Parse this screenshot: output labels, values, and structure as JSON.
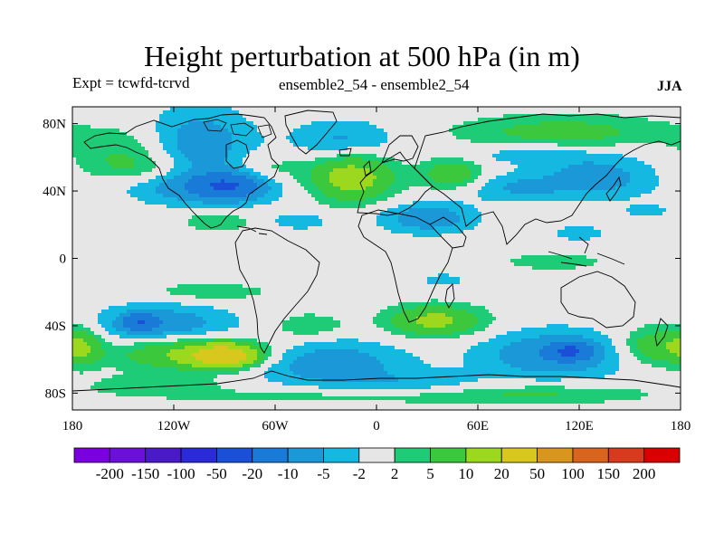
{
  "header": {
    "title": "Height perturbation at 500 hPa (in m)",
    "left_subtitle": "Expt = tcwfd-tcrvd",
    "center_subtitle": "ensemble2_54 - ensemble2_54",
    "right_subtitle": "JJA"
  },
  "chart_data": {
    "type": "heatmap",
    "title": "Height perturbation at 500 hPa (in m)",
    "xlim": [
      -180,
      180
    ],
    "ylim": [
      -90,
      90
    ],
    "x_ticks": [
      {
        "value": -180,
        "label": "180"
      },
      {
        "value": -120,
        "label": "120W"
      },
      {
        "value": -60,
        "label": "60W"
      },
      {
        "value": 0,
        "label": "0"
      },
      {
        "value": 60,
        "label": "60E"
      },
      {
        "value": 120,
        "label": "120E"
      },
      {
        "value": 180,
        "label": "180"
      }
    ],
    "y_ticks": [
      {
        "value": 80,
        "label": "80N"
      },
      {
        "value": 40,
        "label": "40N"
      },
      {
        "value": 0,
        "label": "0"
      },
      {
        "value": -40,
        "label": "40S"
      },
      {
        "value": -80,
        "label": "80S"
      }
    ],
    "levels": [
      -200,
      -150,
      -100,
      -50,
      -20,
      -10,
      -5,
      -2,
      2,
      5,
      10,
      20,
      50,
      100,
      150,
      200
    ],
    "colorbar_labels": [
      "-200",
      "-150",
      "-100",
      "-50",
      "-20",
      "-10",
      "-5",
      "-2",
      "2",
      "5",
      "10",
      "20",
      "50",
      "100",
      "150",
      "200"
    ],
    "colors": [
      "#7a00e0",
      "#6a10d8",
      "#4a1ac8",
      "#2a2ad8",
      "#1a50d8",
      "#1a7ad8",
      "#1a98d8",
      "#14b8e0",
      "#e6e6e6",
      "#1ecc78",
      "#3cc83c",
      "#9cd81e",
      "#d8c81e",
      "#d8961e",
      "#d8641e",
      "#d83a1e",
      "#d80000"
    ],
    "anomalies": [
      {
        "lon": -105,
        "lat": 67,
        "rlon": 30,
        "rlat": 22,
        "value": -8
      },
      {
        "lon": -150,
        "lat": 62,
        "rlon": 30,
        "rlat": 15,
        "value": 5
      },
      {
        "lon": -100,
        "lat": 43,
        "rlon": 45,
        "rlat": 11,
        "value": -8
      },
      {
        "lon": -88,
        "lat": 43,
        "rlon": 18,
        "rlat": 7,
        "value": -14
      },
      {
        "lon": -130,
        "lat": 53,
        "rlon": 35,
        "rlat": 8,
        "value": 4
      },
      {
        "lon": -65,
        "lat": 53,
        "rlon": 22,
        "rlat": 9,
        "value": 4
      },
      {
        "lon": -20,
        "lat": 70,
        "rlon": 30,
        "rlat": 12,
        "value": -6
      },
      {
        "lon": -15,
        "lat": 48,
        "rlon": 25,
        "rlat": 14,
        "value": 14
      },
      {
        "lon": 45,
        "lat": 50,
        "rlon": 18,
        "rlat": 9,
        "value": 9
      },
      {
        "lon": 110,
        "lat": 75,
        "rlon": 60,
        "rlat": 10,
        "value": 7
      },
      {
        "lon": 90,
        "lat": 62,
        "rlon": 40,
        "rlat": 6,
        "value": -4
      },
      {
        "lon": 130,
        "lat": 48,
        "rlon": 35,
        "rlat": 13,
        "value": -7
      },
      {
        "lon": 80,
        "lat": 42,
        "rlon": 30,
        "rlat": 8,
        "value": -5
      },
      {
        "lon": 30,
        "lat": 24,
        "rlon": 28,
        "rlat": 9,
        "value": -8
      },
      {
        "lon": -95,
        "lat": 22,
        "rlon": 20,
        "rlat": 6,
        "value": 5
      },
      {
        "lon": -45,
        "lat": 22,
        "rlon": 18,
        "rlat": 5,
        "value": -4
      },
      {
        "lon": 120,
        "lat": 15,
        "rlon": 15,
        "rlat": 5,
        "value": -4
      },
      {
        "lon": 105,
        "lat": -2,
        "rlon": 30,
        "rlat": 5,
        "value": 4
      },
      {
        "lon": 40,
        "lat": -13,
        "rlon": 12,
        "rlat": 4,
        "value": -4
      },
      {
        "lon": -125,
        "lat": -40,
        "rlon": 40,
        "rlat": 13,
        "value": -8
      },
      {
        "lon": -140,
        "lat": -38,
        "rlon": 10,
        "rlat": 5,
        "value": -14
      },
      {
        "lon": -100,
        "lat": -20,
        "rlon": 40,
        "rlat": 6,
        "value": 4
      },
      {
        "lon": -110,
        "lat": -56,
        "rlon": 45,
        "rlat": 10,
        "value": 12
      },
      {
        "lon": -90,
        "lat": -58,
        "rlon": 18,
        "rlat": 6,
        "value": 28
      },
      {
        "lon": -30,
        "lat": -62,
        "rlon": 45,
        "rlat": 13,
        "value": -8
      },
      {
        "lon": -40,
        "lat": -40,
        "rlon": 20,
        "rlat": 7,
        "value": 5
      },
      {
        "lon": 35,
        "lat": -37,
        "rlon": 28,
        "rlat": 9,
        "value": 12
      },
      {
        "lon": 105,
        "lat": -57,
        "rlon": 42,
        "rlat": 14,
        "value": -9
      },
      {
        "lon": 115,
        "lat": -55,
        "rlon": 12,
        "rlat": 5,
        "value": -16
      },
      {
        "lon": 165,
        "lat": -52,
        "rlon": 20,
        "rlat": 11,
        "value": 9
      },
      {
        "lon": -175,
        "lat": -52,
        "rlon": 12,
        "rlat": 11,
        "value": 9
      },
      {
        "lon": 20,
        "lat": -75,
        "rlon": 45,
        "rlat": 8,
        "value": -4
      },
      {
        "lon": 0,
        "lat": -82,
        "rlon": 120,
        "rlat": 5,
        "value": 4
      },
      {
        "lon": -130,
        "lat": -75,
        "rlon": 40,
        "rlat": 6,
        "value": 4
      },
      {
        "lon": 100,
        "lat": -80,
        "rlon": 60,
        "rlat": 6,
        "value": 4
      },
      {
        "lon": 160,
        "lat": 28,
        "rlon": 12,
        "rlat": 4,
        "value": -4
      }
    ]
  }
}
